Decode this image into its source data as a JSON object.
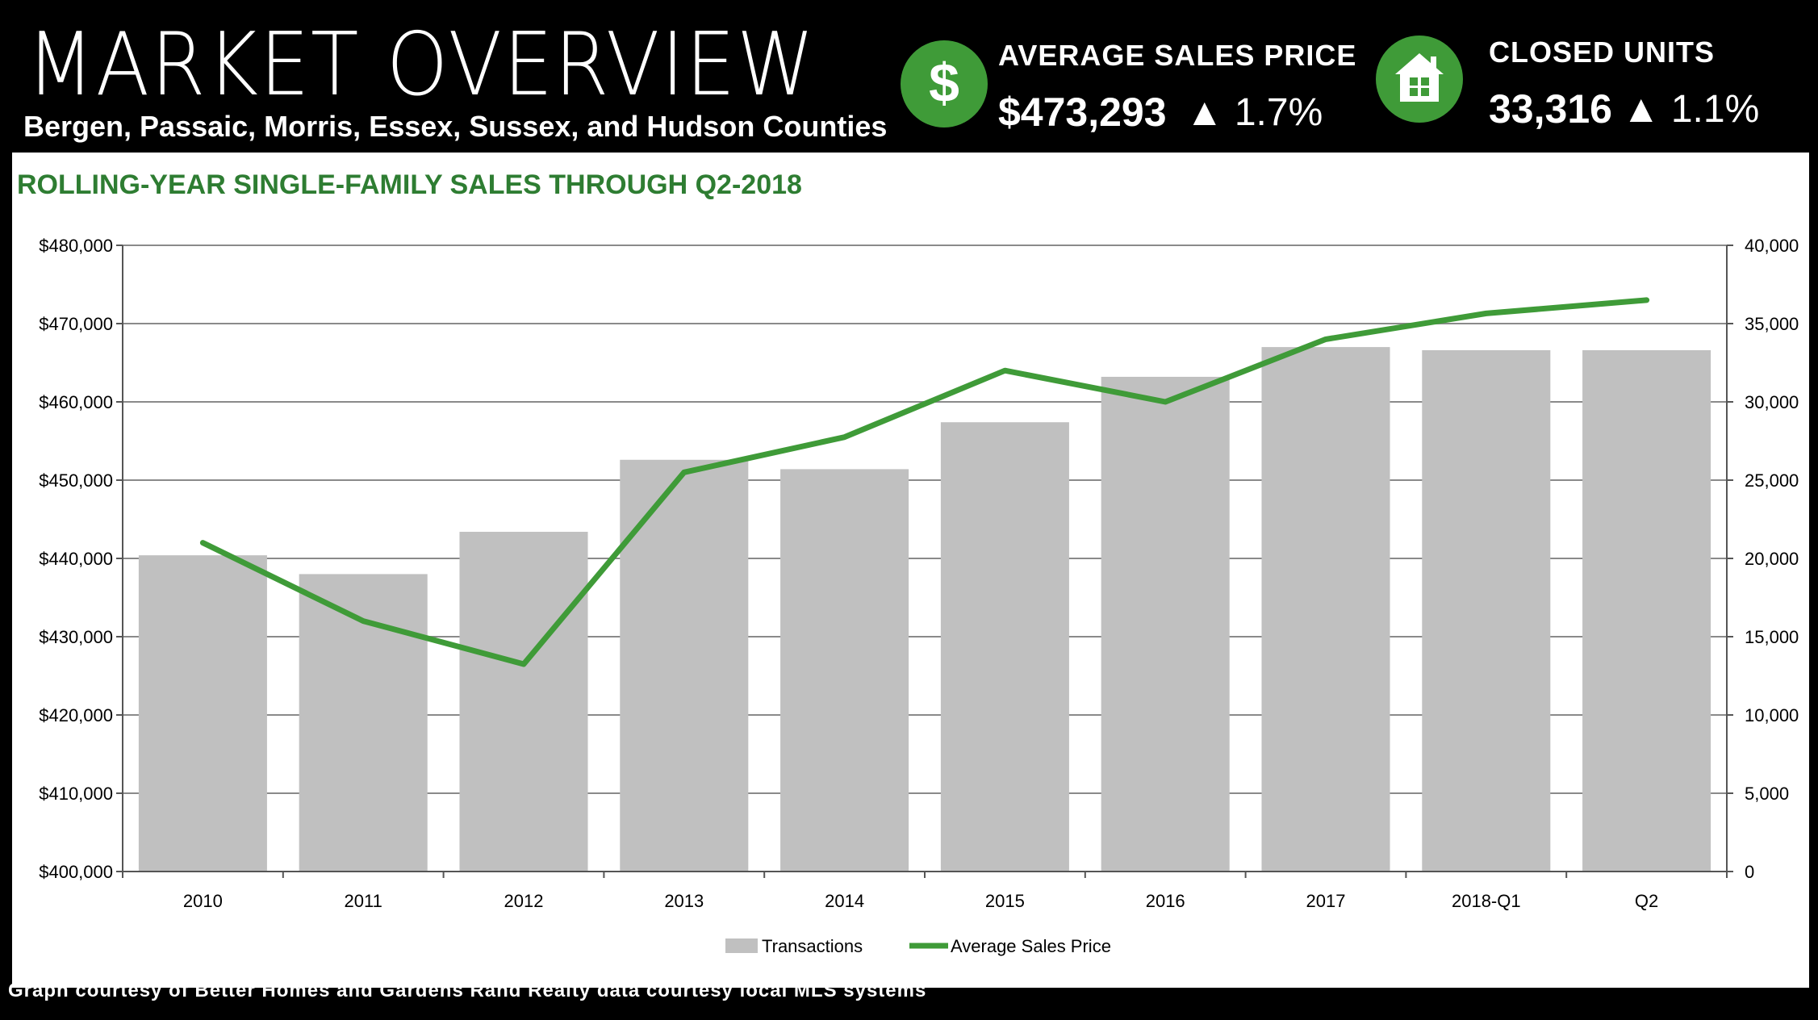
{
  "header": {
    "title": "MARKET OVERVIEW",
    "subtitle": "Bergen, Passaic, Morris, Essex, Sussex, and Hudson Counties",
    "avg_price": {
      "label": "AVERAGE SALES PRICE",
      "value": "$473,293",
      "change": "▲ 1.7%",
      "icon": "dollar-icon"
    },
    "closed_units": {
      "label": "CLOSED UNITS",
      "value": "33,316",
      "change": "▲ 1.1%",
      "icon": "house-icon"
    }
  },
  "chart_title": "ROLLING-YEAR SINGLE-FAMILY SALES THROUGH Q2-2018",
  "footer": "Graph courtesy of Better Homes and Gardens Rand Realty data courtesy local MLS systems",
  "colors": {
    "bar": "#c0c0c0",
    "line": "#3f9b38",
    "header_bg": "#000000",
    "accent_green": "#2e7d32"
  },
  "chart_data": {
    "type": "bar",
    "categories": [
      "2010",
      "2011",
      "2012",
      "2013",
      "2014",
      "2015",
      "2016",
      "2017",
      "2018-Q1",
      "Q2"
    ],
    "series": [
      {
        "name": "Transactions",
        "type": "bar",
        "axis": "right",
        "values": [
          20200,
          19000,
          21700,
          26300,
          25700,
          28700,
          31600,
          33500,
          33300,
          33300
        ]
      },
      {
        "name": "Average Sales Price",
        "type": "line",
        "axis": "left",
        "values": [
          442000,
          432000,
          426500,
          451000,
          455500,
          464000,
          460000,
          468000,
          471300,
          473000
        ]
      }
    ],
    "y_left": {
      "lim": [
        400000,
        480000
      ],
      "ticks": [
        400000,
        410000,
        420000,
        430000,
        440000,
        450000,
        460000,
        470000,
        480000
      ],
      "tick_labels": [
        "$400,000",
        "$410,000",
        "$420,000",
        "$430,000",
        "$440,000",
        "$450,000",
        "$460,000",
        "$470,000",
        "$480,000"
      ]
    },
    "y_right": {
      "lim": [
        0,
        40000
      ],
      "ticks": [
        0,
        5000,
        10000,
        15000,
        20000,
        25000,
        30000,
        35000,
        40000
      ],
      "tick_labels": [
        "0",
        "5,000",
        "10,000",
        "15,000",
        "20,000",
        "25,000",
        "30,000",
        "35,000",
        "40,000"
      ]
    },
    "grid": true,
    "legend": {
      "position": "bottom-center",
      "items": [
        "Transactions",
        "Average Sales Price"
      ]
    }
  }
}
